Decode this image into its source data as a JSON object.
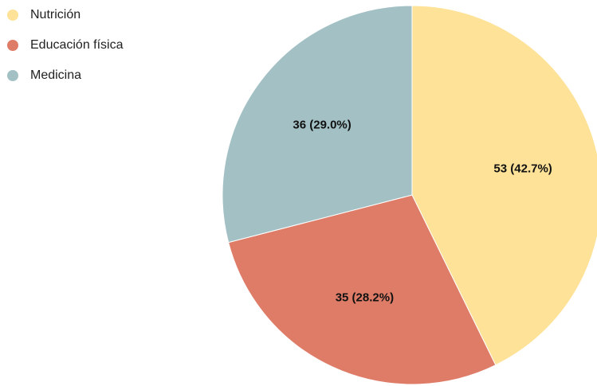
{
  "chart_data": {
    "type": "pie",
    "categories": [
      "Nutrición",
      "Educación física",
      "Medicina"
    ],
    "values": [
      53,
      35,
      36
    ],
    "value_labels": [
      "53 (42.7%)",
      "35 (28.2%)",
      "36 (29.0%)"
    ],
    "colors": [
      "#fde298",
      "#de7c68",
      "#a3c1c5"
    ],
    "legend": "top-left"
  }
}
